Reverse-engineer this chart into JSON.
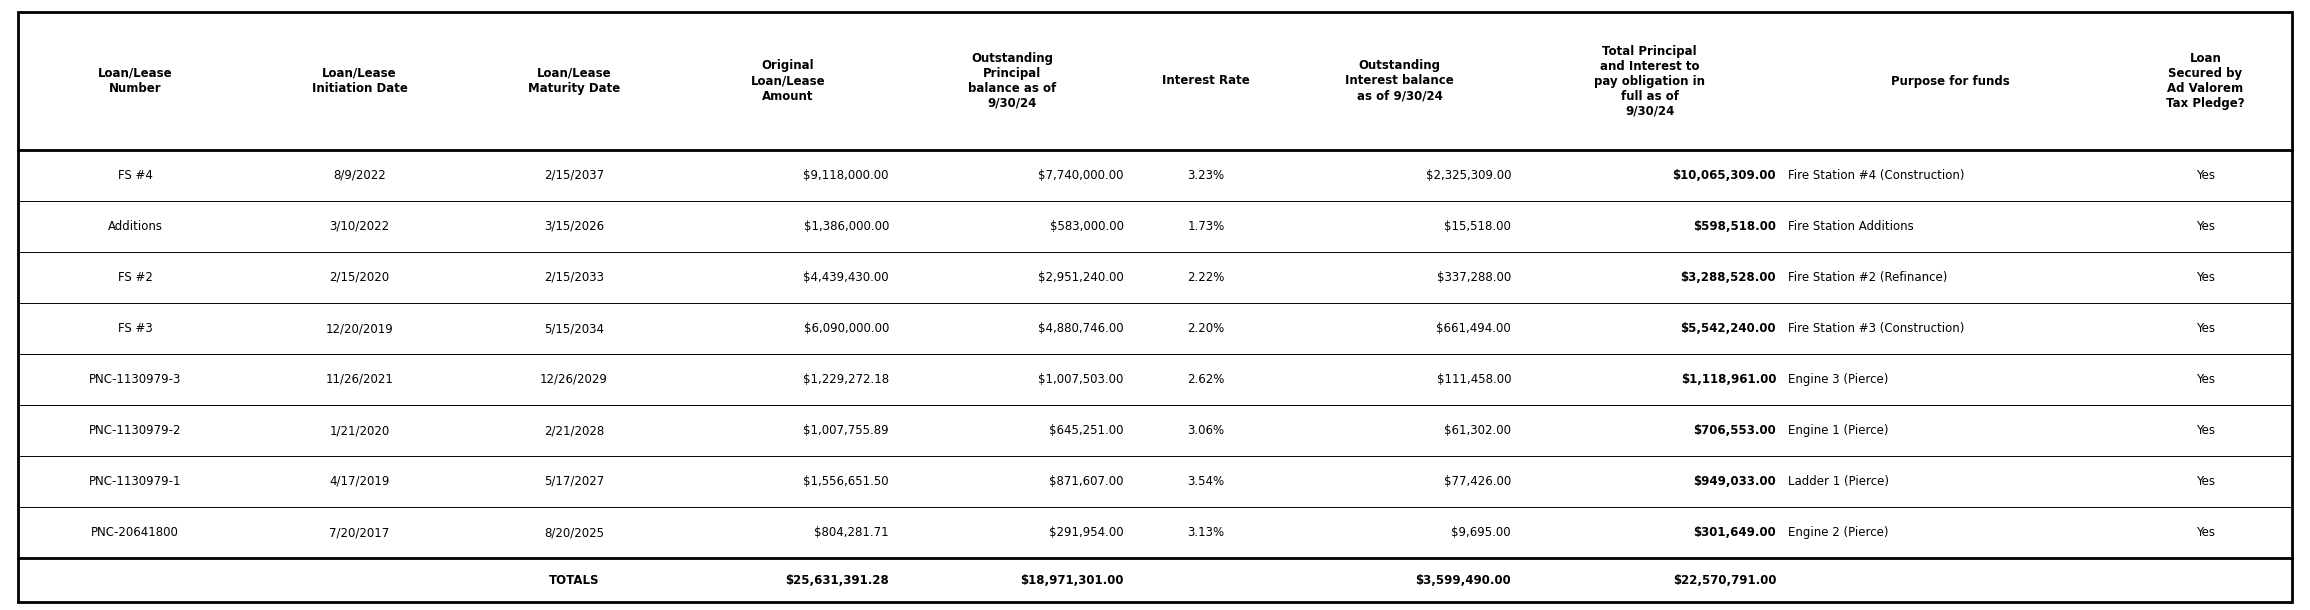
{
  "columns": [
    "Loan/Lease\nNumber",
    "Loan/Lease\nInitiation Date",
    "Loan/Lease\nMaturity Date",
    "Original\nLoan/Lease\nAmount",
    "Outstanding\nPrincipal\nbalance as of\n9/30/24",
    "Interest Rate",
    "Outstanding\nInterest balance\nas of 9/30/24",
    "Total Principal\nand Interest to\npay obligation in\nfull as of\n9/30/24",
    "Purpose for funds",
    "Loan\nSecured by\nAd Valorem\nTax Pledge?"
  ],
  "rows": [
    [
      "PNC-20641800",
      "7/20/2017",
      "8/20/2025",
      "$804,281.71",
      "$291,954.00",
      "3.13%",
      "$9,695.00",
      "$301,649.00",
      "Engine 2 (Pierce)",
      "Yes"
    ],
    [
      "PNC-1130979-1",
      "4/17/2019",
      "5/17/2027",
      "$1,556,651.50",
      "$871,607.00",
      "3.54%",
      "$77,426.00",
      "$949,033.00",
      "Ladder 1 (Pierce)",
      "Yes"
    ],
    [
      "PNC-1130979-2",
      "1/21/2020",
      "2/21/2028",
      "$1,007,755.89",
      "$645,251.00",
      "3.06%",
      "$61,302.00",
      "$706,553.00",
      "Engine 1 (Pierce)",
      "Yes"
    ],
    [
      "PNC-1130979-3",
      "11/26/2021",
      "12/26/2029",
      "$1,229,272.18",
      "$1,007,503.00",
      "2.62%",
      "$111,458.00",
      "$1,118,961.00",
      "Engine 3 (Pierce)",
      "Yes"
    ],
    [
      "FS #3",
      "12/20/2019",
      "5/15/2034",
      "$6,090,000.00",
      "$4,880,746.00",
      "2.20%",
      "$661,494.00",
      "$5,542,240.00",
      "Fire Station #3 (Construction)",
      "Yes"
    ],
    [
      "FS #2",
      "2/15/2020",
      "2/15/2033",
      "$4,439,430.00",
      "$2,951,240.00",
      "2.22%",
      "$337,288.00",
      "$3,288,528.00",
      "Fire Station #2 (Refinance)",
      "Yes"
    ],
    [
      "Additions",
      "3/10/2022",
      "3/15/2026",
      "$1,386,000.00",
      "$583,000.00",
      "1.73%",
      "$15,518.00",
      "$598,518.00",
      "Fire Station Additions",
      "Yes"
    ],
    [
      "FS #4",
      "8/9/2022",
      "2/15/2037",
      "$9,118,000.00",
      "$7,740,000.00",
      "3.23%",
      "$2,325,309.00",
      "$10,065,309.00",
      "Fire Station #4 (Construction)",
      "Yes"
    ]
  ],
  "totals": [
    "",
    "",
    "TOTALS",
    "$25,631,391.28",
    "$18,971,301.00",
    "",
    "$3,599,490.00",
    "$22,570,791.00",
    "",
    ""
  ],
  "col_weights": [
    1.15,
    1.05,
    1.05,
    1.05,
    1.15,
    0.75,
    1.15,
    1.3,
    1.65,
    0.85
  ],
  "bold_data_cols": [
    7
  ],
  "bg_color": "#ffffff",
  "text_color": "#000000",
  "border_color": "#000000",
  "font_size": 8.5,
  "header_font_size": 8.5
}
